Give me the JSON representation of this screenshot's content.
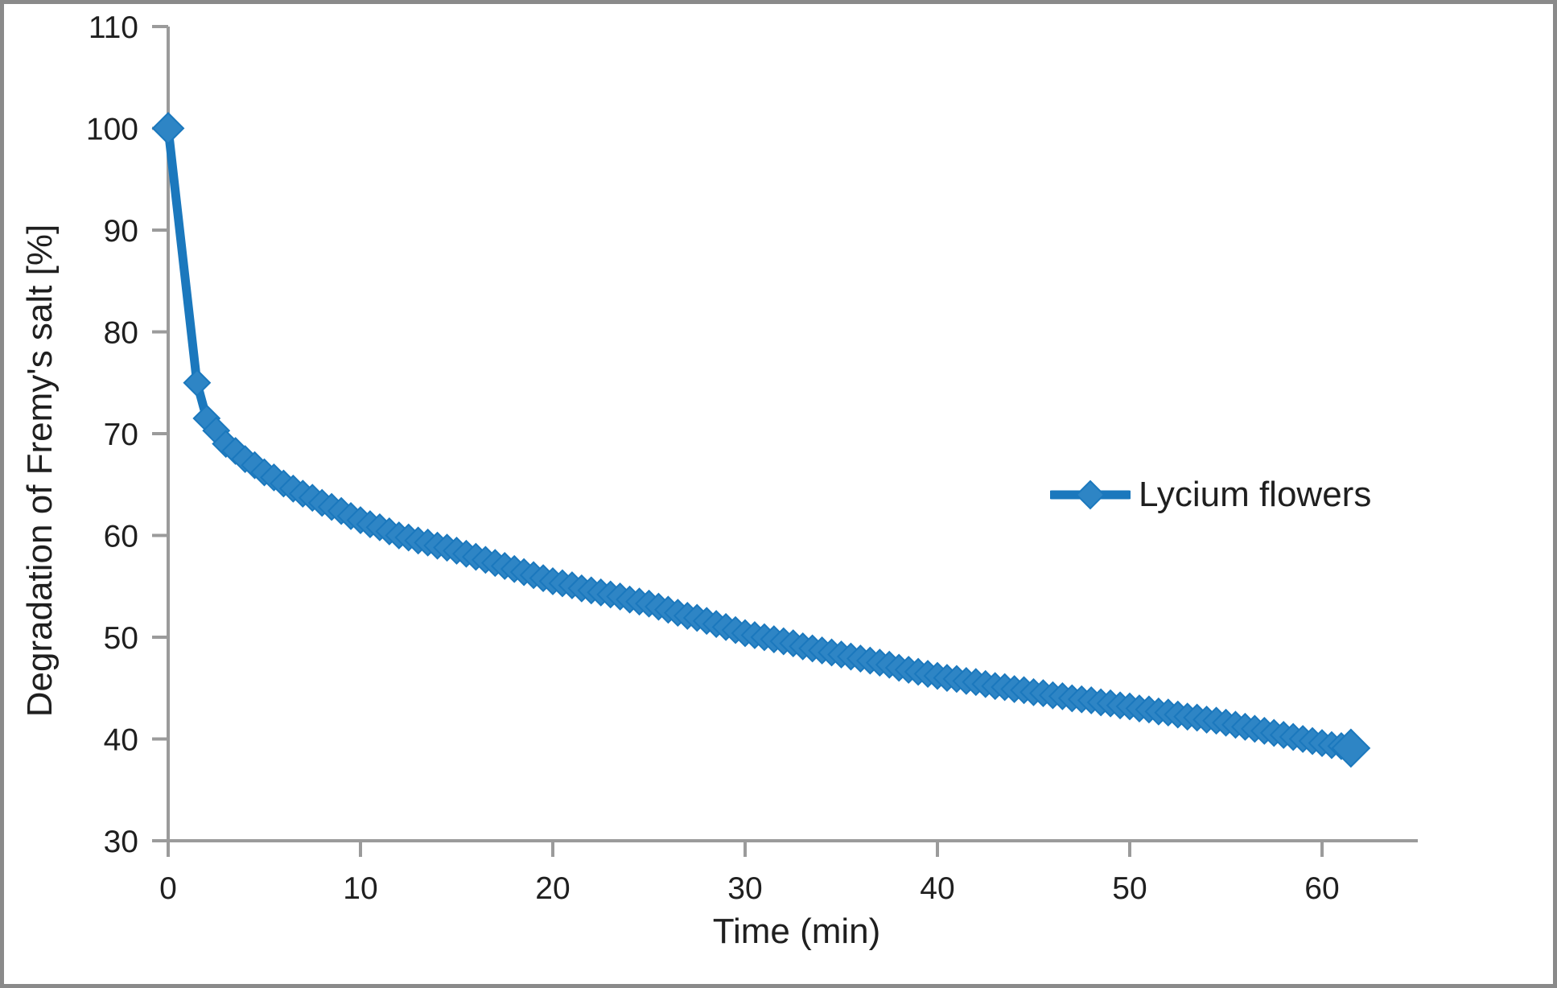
{
  "chart_data": {
    "type": "line",
    "title": "",
    "xlabel": "Time (min)",
    "ylabel": "Degradation of Fremy's salt [%]",
    "xlim": [
      0,
      65
    ],
    "ylim": [
      30,
      110
    ],
    "x_ticks": [
      0,
      10,
      20,
      30,
      40,
      50,
      60
    ],
    "y_ticks": [
      30,
      40,
      50,
      60,
      70,
      80,
      90,
      100,
      110
    ],
    "grid": false,
    "legend_position": "right-middle",
    "axis_color": "#9b9b9b",
    "tick_label_color": "#1f1f1f",
    "series": [
      {
        "name": "Lycium flowers",
        "color": "#1b78bd",
        "marker": "diamond",
        "marker_color": "#2e85c5",
        "points": [
          [
            0,
            100
          ],
          [
            1.5,
            75
          ],
          [
            2,
            71.5
          ],
          [
            2.5,
            70.3
          ],
          [
            3,
            69
          ],
          [
            3.5,
            68.3
          ],
          [
            4,
            67.5
          ],
          [
            4.5,
            66.9
          ],
          [
            5,
            66.2
          ],
          [
            5.5,
            65.7
          ],
          [
            6,
            65.1
          ],
          [
            6.5,
            64.6
          ],
          [
            7,
            64.1
          ],
          [
            7.5,
            63.7
          ],
          [
            8,
            63.2
          ],
          [
            8.5,
            62.8
          ],
          [
            9,
            62.4
          ],
          [
            9.5,
            61.9
          ],
          [
            10,
            61.5
          ],
          [
            10.5,
            61.1
          ],
          [
            11,
            60.8
          ],
          [
            11.5,
            60.4
          ],
          [
            12,
            60
          ],
          [
            12.5,
            59.8
          ],
          [
            13,
            59.5
          ],
          [
            13.5,
            59.3
          ],
          [
            14,
            59
          ],
          [
            14.5,
            58.8
          ],
          [
            15,
            58.5
          ],
          [
            15.5,
            58.2
          ],
          [
            16,
            57.9
          ],
          [
            16.5,
            57.6
          ],
          [
            17,
            57.3
          ],
          [
            17.5,
            57
          ],
          [
            18,
            56.7
          ],
          [
            18.5,
            56.4
          ],
          [
            19,
            56.1
          ],
          [
            19.5,
            55.8
          ],
          [
            20,
            55.5
          ],
          [
            20.5,
            55.3
          ],
          [
            21,
            55.1
          ],
          [
            21.5,
            54.8
          ],
          [
            22,
            54.6
          ],
          [
            22.5,
            54.4
          ],
          [
            23,
            54.2
          ],
          [
            23.5,
            54
          ],
          [
            24,
            53.7
          ],
          [
            24.5,
            53.5
          ],
          [
            25,
            53.3
          ],
          [
            25.5,
            53
          ],
          [
            26,
            52.7
          ],
          [
            26.5,
            52.4
          ],
          [
            27,
            52.1
          ],
          [
            27.5,
            51.9
          ],
          [
            28,
            51.6
          ],
          [
            28.5,
            51.3
          ],
          [
            29,
            51
          ],
          [
            29.5,
            50.7
          ],
          [
            30,
            50.4
          ],
          [
            30.5,
            50.2
          ],
          [
            31,
            50
          ],
          [
            31.5,
            49.8
          ],
          [
            32,
            49.6
          ],
          [
            32.5,
            49.4
          ],
          [
            33,
            49.1
          ],
          [
            33.5,
            48.9
          ],
          [
            34,
            48.7
          ],
          [
            34.5,
            48.5
          ],
          [
            35,
            48.3
          ],
          [
            35.5,
            48.1
          ],
          [
            36,
            47.9
          ],
          [
            36.5,
            47.7
          ],
          [
            37,
            47.5
          ],
          [
            37.5,
            47.3
          ],
          [
            38,
            47
          ],
          [
            38.5,
            46.8
          ],
          [
            39,
            46.6
          ],
          [
            39.5,
            46.4
          ],
          [
            40,
            46.2
          ],
          [
            40.5,
            46
          ],
          [
            41,
            45.9
          ],
          [
            41.5,
            45.7
          ],
          [
            42,
            45.6
          ],
          [
            42.5,
            45.4
          ],
          [
            43,
            45.2
          ],
          [
            43.5,
            45.1
          ],
          [
            44,
            44.9
          ],
          [
            44.5,
            44.8
          ],
          [
            45,
            44.6
          ],
          [
            45.5,
            44.5
          ],
          [
            46,
            44.3
          ],
          [
            46.5,
            44.2
          ],
          [
            47,
            44
          ],
          [
            47.5,
            43.9
          ],
          [
            48,
            43.8
          ],
          [
            48.5,
            43.6
          ],
          [
            49,
            43.5
          ],
          [
            49.5,
            43.3
          ],
          [
            50,
            43.2
          ],
          [
            50.5,
            43
          ],
          [
            51,
            42.9
          ],
          [
            51.5,
            42.7
          ],
          [
            52,
            42.6
          ],
          [
            52.5,
            42.4
          ],
          [
            53,
            42.2
          ],
          [
            53.5,
            42.1
          ],
          [
            54,
            41.9
          ],
          [
            54.5,
            41.8
          ],
          [
            55,
            41.6
          ],
          [
            55.5,
            41.4
          ],
          [
            56,
            41.2
          ],
          [
            56.5,
            41
          ],
          [
            57,
            40.8
          ],
          [
            57.5,
            40.6
          ],
          [
            58,
            40.4
          ],
          [
            58.5,
            40.2
          ],
          [
            59,
            40
          ],
          [
            59.5,
            39.8
          ],
          [
            60,
            39.6
          ],
          [
            60.5,
            39.4
          ],
          [
            61,
            39.3
          ],
          [
            61.5,
            39.1
          ]
        ]
      }
    ]
  }
}
